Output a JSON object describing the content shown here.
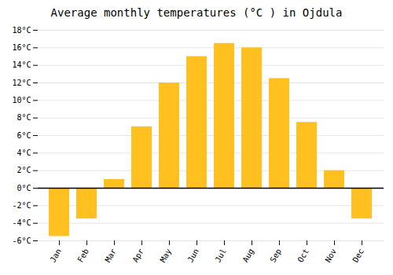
{
  "chart_data": {
    "type": "bar",
    "title": "Average monthly temperatures (°C ) in Ojdula",
    "categories": [
      "Jan",
      "Feb",
      "Mar",
      "Apr",
      "May",
      "Jun",
      "Jul",
      "Aug",
      "Sep",
      "Oct",
      "Nov",
      "Dec"
    ],
    "values": [
      -5.5,
      -3.5,
      1.0,
      7.0,
      12.0,
      15.0,
      16.5,
      16.0,
      12.5,
      7.5,
      2.0,
      -3.5
    ],
    "color": "#FFC020",
    "ylim": [
      -6,
      18
    ],
    "yticks": [
      {
        "value": -6,
        "label": "-6°C"
      },
      {
        "value": -4,
        "label": "-4°C"
      },
      {
        "value": -2,
        "label": "-2°C"
      },
      {
        "value": 0,
        "label": "0°C"
      },
      {
        "value": 2,
        "label": "2°C"
      },
      {
        "value": 4,
        "label": "4°C"
      },
      {
        "value": 6,
        "label": "6°C"
      },
      {
        "value": 8,
        "label": "8°C"
      },
      {
        "value": 10,
        "label": "10°C"
      },
      {
        "value": 12,
        "label": "12°C"
      },
      {
        "value": 14,
        "label": "14°C"
      },
      {
        "value": 16,
        "label": "16°C"
      },
      {
        "value": 18,
        "label": "18°C"
      }
    ],
    "grid": true
  }
}
